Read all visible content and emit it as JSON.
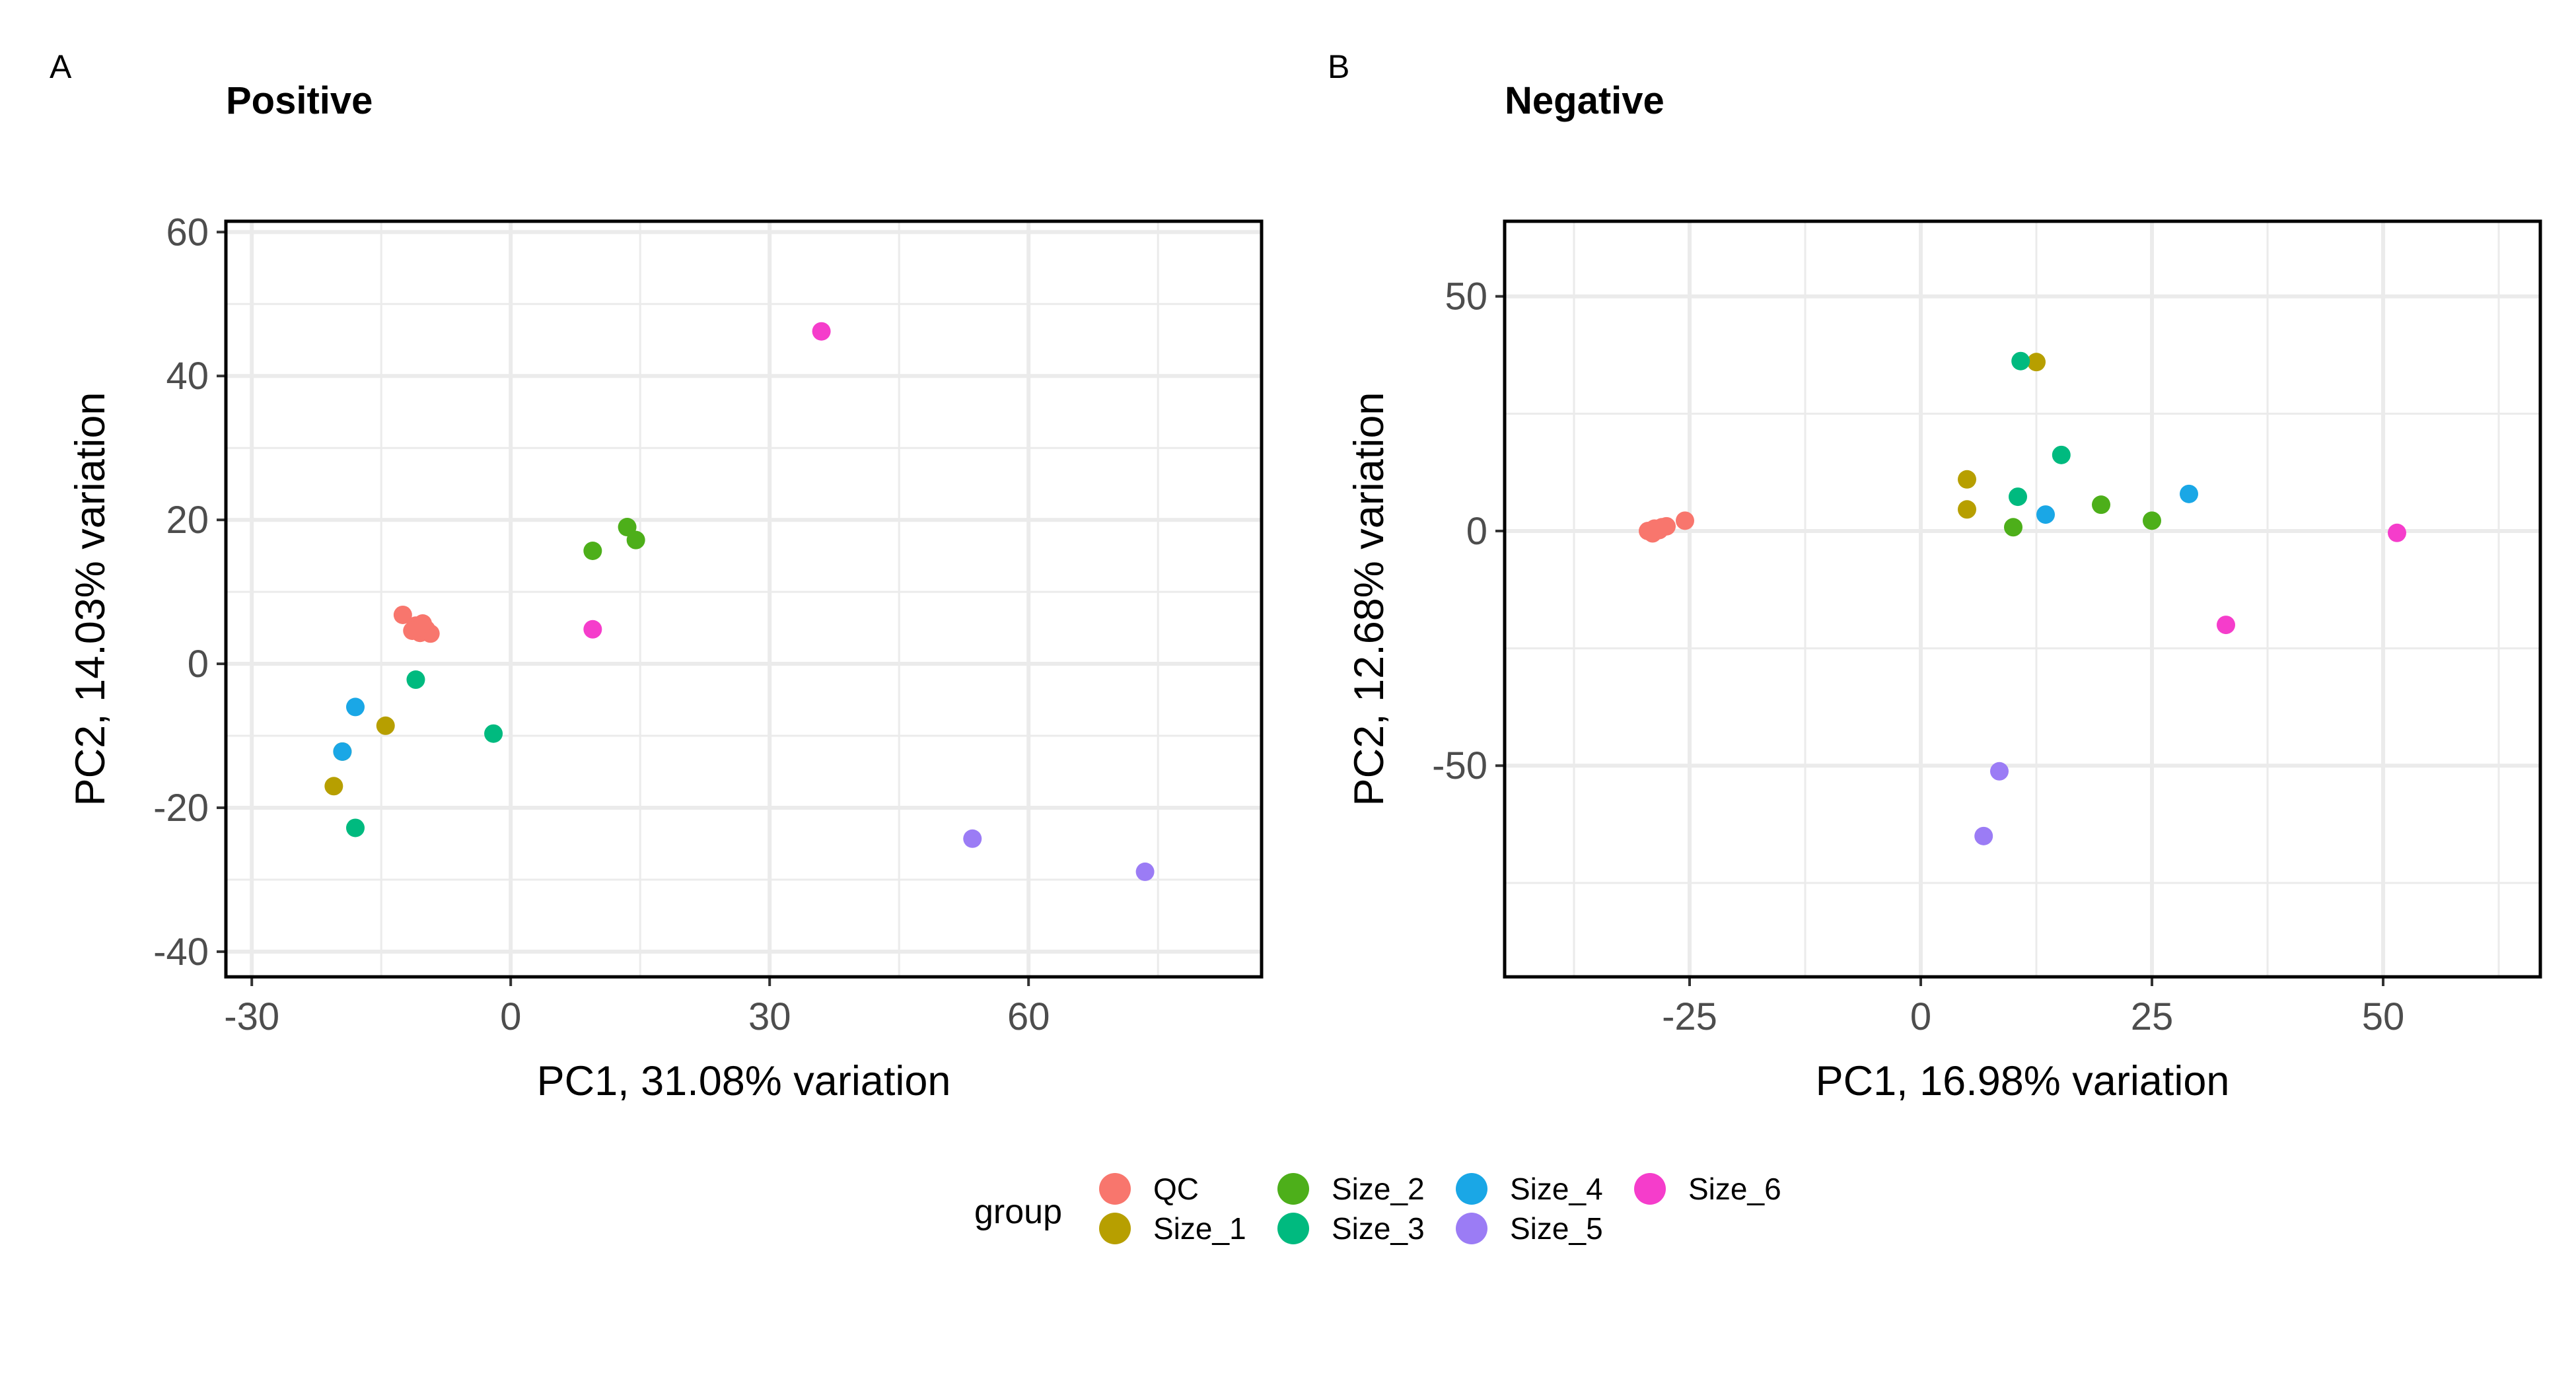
{
  "colors": {
    "QC": "#F8766D",
    "Size_1": "#B79F00",
    "Size_2": "#4DAF1A",
    "Size_3": "#00BA7F",
    "Size_4": "#1AA7E6",
    "Size_5": "#9B7CF5",
    "Size_6": "#F53DCB",
    "gridline": "#EBEBEB",
    "panel_border": "#000000"
  },
  "legend": {
    "title": "group",
    "entries": [
      "QC",
      "Size_1",
      "Size_2",
      "Size_3",
      "Size_4",
      "Size_5",
      "Size_6"
    ]
  },
  "chart_data": [
    {
      "type": "scatter",
      "panel_letter": "A",
      "title": "Positive",
      "xlabel": "PC1, 31.08% variation",
      "ylabel": "PC2, 14.03% variation",
      "xlim": [
        -33,
        87
      ],
      "ylim": [
        -43.5,
        61.5
      ],
      "xticks": [
        -30,
        0,
        30,
        60
      ],
      "xtick_labels": [
        "-30",
        "0",
        "30",
        "60"
      ],
      "yticks": [
        -40,
        -20,
        0,
        20,
        40,
        60
      ],
      "ytick_labels": [
        "-40",
        "-20",
        "0",
        "20",
        "40",
        "60"
      ],
      "grid": true,
      "series": [
        {
          "name": "QC",
          "points": [
            [
              -12.5,
              6.8
            ],
            [
              -11,
              5.3
            ],
            [
              -10.5,
              4.3
            ],
            [
              -9.8,
              4.8
            ],
            [
              -9.3,
              4.2
            ],
            [
              -10.2,
              5.6
            ],
            [
              -11.4,
              4.6
            ]
          ]
        },
        {
          "name": "Size_1",
          "points": [
            [
              -14.5,
              -8.6
            ],
            [
              -19.5,
              -12.2
            ],
            [
              -20.5,
              -17
            ]
          ]
        },
        {
          "name": "Size_2",
          "points": [
            [
              9.5,
              15.7
            ],
            [
              13.5,
              19
            ],
            [
              14.5,
              17.2
            ]
          ]
        },
        {
          "name": "Size_3",
          "points": [
            [
              -11,
              -2.2
            ],
            [
              -2,
              -9.7
            ],
            [
              -18,
              -22.8
            ]
          ]
        },
        {
          "name": "Size_4",
          "points": [
            [
              -18,
              -6
            ],
            [
              -19.5,
              -12.2
            ]
          ]
        },
        {
          "name": "Size_5",
          "points": [
            [
              53.5,
              -24.3
            ],
            [
              73.5,
              -28.9
            ]
          ]
        },
        {
          "name": "Size_6",
          "points": [
            [
              36,
              46.2
            ],
            [
              9.5,
              4.8
            ]
          ]
        }
      ]
    },
    {
      "type": "scatter",
      "panel_letter": "B",
      "title": "Negative",
      "xlabel": "PC1, 16.98% variation",
      "ylabel": "PC2, 12.68% variation",
      "xlim": [
        -45,
        67
      ],
      "ylim": [
        -95,
        66
      ],
      "xticks": [
        -25,
        0,
        25,
        50
      ],
      "xtick_labels": [
        "-25",
        "0",
        "25",
        "50"
      ],
      "yticks": [
        -50,
        0,
        50
      ],
      "ytick_labels": [
        "-50",
        "0",
        "50"
      ],
      "grid": true,
      "series": [
        {
          "name": "QC",
          "points": [
            [
              -29.5,
              0
            ],
            [
              -28.8,
              0.5
            ],
            [
              -28,
              0.8
            ],
            [
              -27.5,
              1
            ],
            [
              -29,
              -0.5
            ],
            [
              -28.3,
              0.2
            ],
            [
              -25.5,
              2.2
            ]
          ]
        },
        {
          "name": "Size_1",
          "points": [
            [
              12.5,
              36
            ],
            [
              5,
              11
            ],
            [
              5,
              4.6
            ]
          ]
        },
        {
          "name": "Size_2",
          "points": [
            [
              10,
              0.8
            ],
            [
              19.5,
              5.6
            ],
            [
              25,
              2.2
            ]
          ]
        },
        {
          "name": "Size_3",
          "points": [
            [
              10.8,
              36.2
            ],
            [
              10.5,
              7.3
            ],
            [
              15.2,
              16.2
            ]
          ]
        },
        {
          "name": "Size_4",
          "points": [
            [
              13.5,
              3.5
            ],
            [
              29,
              7.9
            ]
          ]
        },
        {
          "name": "Size_5",
          "points": [
            [
              8.5,
              -51.2
            ],
            [
              6.8,
              -65
            ]
          ]
        },
        {
          "name": "Size_6",
          "points": [
            [
              51.5,
              -0.4
            ],
            [
              33,
              -20
            ]
          ]
        }
      ]
    }
  ]
}
